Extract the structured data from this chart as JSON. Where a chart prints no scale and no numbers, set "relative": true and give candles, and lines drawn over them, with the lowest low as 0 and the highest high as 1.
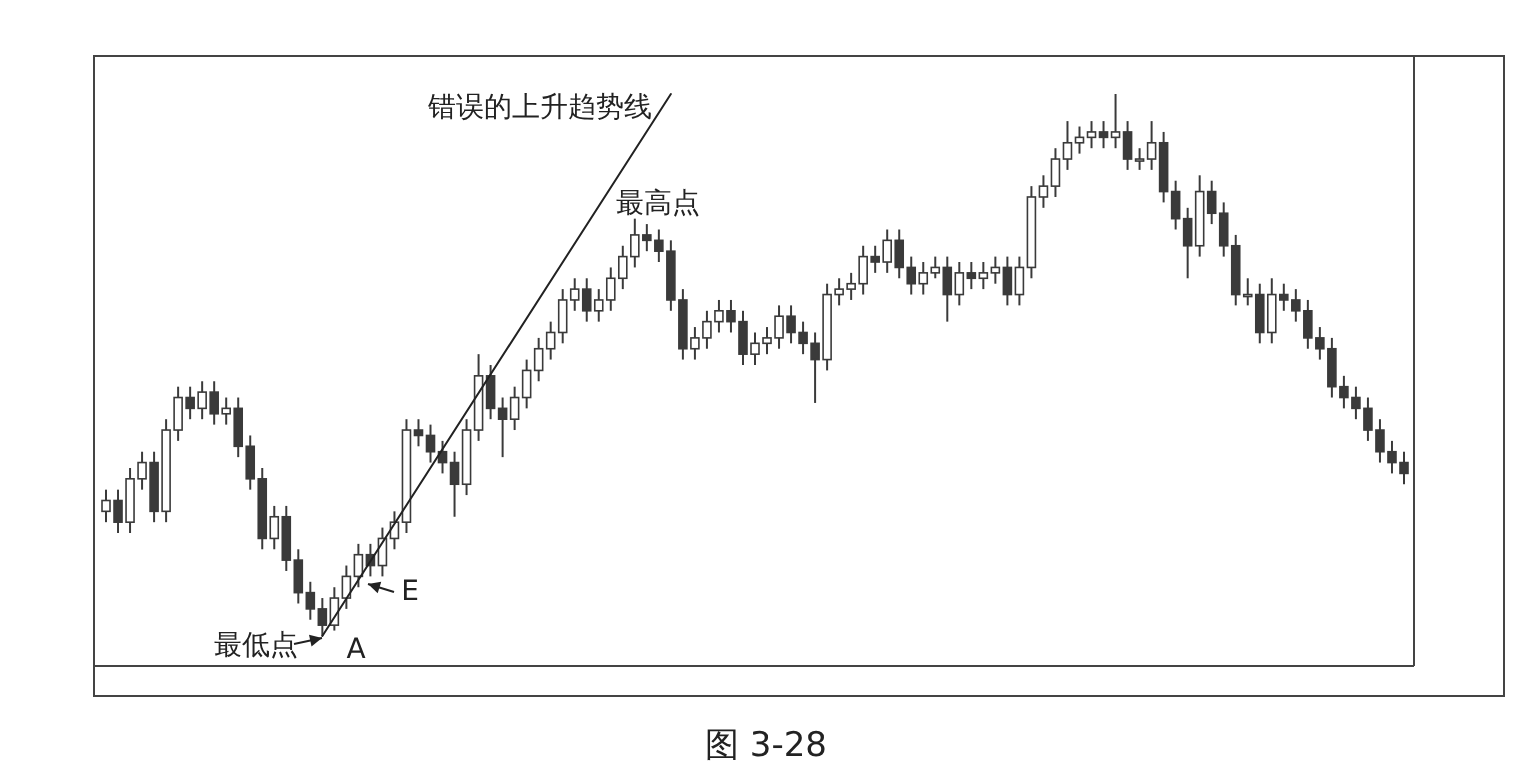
{
  "chart_data": {
    "type": "candlestick",
    "relative": true,
    "color": "#3a3a3a",
    "categories": [
      null,
      null,
      null,
      null,
      null,
      null,
      null,
      null,
      null,
      null,
      null,
      null,
      null,
      null,
      null,
      null,
      null,
      null,
      null,
      null,
      null,
      null,
      null,
      null,
      null,
      null,
      null,
      null,
      null,
      null,
      null,
      null,
      null,
      null,
      null,
      null,
      null,
      null,
      null,
      null,
      null,
      null,
      null,
      null,
      null,
      null,
      null,
      null,
      null,
      null,
      null,
      null,
      null,
      null,
      null,
      null,
      null,
      null,
      null,
      null,
      null,
      null,
      null,
      null,
      null,
      null,
      null,
      null,
      null,
      null,
      null,
      null,
      null,
      null,
      null,
      null,
      null,
      null,
      null,
      null,
      null,
      null,
      null,
      null,
      null,
      null,
      null,
      null,
      null,
      null,
      null,
      null,
      null,
      null,
      null,
      null,
      null,
      null,
      null,
      null,
      null,
      null,
      null,
      null,
      null,
      null,
      null,
      null,
      null
    ],
    "ohlc": [
      [
        0.23,
        0.27,
        0.21,
        0.25
      ],
      [
        0.25,
        0.27,
        0.19,
        0.21
      ],
      [
        0.21,
        0.31,
        0.19,
        0.29
      ],
      [
        0.29,
        0.34,
        0.27,
        0.32
      ],
      [
        0.32,
        0.34,
        0.21,
        0.23
      ],
      [
        0.23,
        0.4,
        0.21,
        0.38
      ],
      [
        0.38,
        0.46,
        0.36,
        0.44
      ],
      [
        0.44,
        0.46,
        0.4,
        0.42
      ],
      [
        0.42,
        0.47,
        0.4,
        0.45
      ],
      [
        0.45,
        0.47,
        0.39,
        0.41
      ],
      [
        0.41,
        0.44,
        0.39,
        0.42
      ],
      [
        0.42,
        0.44,
        0.33,
        0.35
      ],
      [
        0.35,
        0.37,
        0.27,
        0.29
      ],
      [
        0.29,
        0.31,
        0.16,
        0.18
      ],
      [
        0.18,
        0.24,
        0.16,
        0.22
      ],
      [
        0.22,
        0.24,
        0.12,
        0.14
      ],
      [
        0.14,
        0.16,
        0.06,
        0.08
      ],
      [
        0.08,
        0.1,
        0.03,
        0.05
      ],
      [
        0.05,
        0.07,
        0.0,
        0.02
      ],
      [
        0.02,
        0.09,
        0.01,
        0.07
      ],
      [
        0.07,
        0.13,
        0.05,
        0.11
      ],
      [
        0.11,
        0.17,
        0.09,
        0.15
      ],
      [
        0.15,
        0.17,
        0.11,
        0.13
      ],
      [
        0.13,
        0.2,
        0.11,
        0.18
      ],
      [
        0.18,
        0.23,
        0.16,
        0.21
      ],
      [
        0.21,
        0.4,
        0.19,
        0.38
      ],
      [
        0.38,
        0.4,
        0.35,
        0.37
      ],
      [
        0.37,
        0.39,
        0.32,
        0.34
      ],
      [
        0.34,
        0.36,
        0.3,
        0.32
      ],
      [
        0.32,
        0.34,
        0.22,
        0.28
      ],
      [
        0.28,
        0.4,
        0.26,
        0.38
      ],
      [
        0.38,
        0.52,
        0.36,
        0.48
      ],
      [
        0.48,
        0.5,
        0.4,
        0.42
      ],
      [
        0.42,
        0.44,
        0.33,
        0.4
      ],
      [
        0.4,
        0.46,
        0.38,
        0.44
      ],
      [
        0.44,
        0.51,
        0.42,
        0.49
      ],
      [
        0.49,
        0.55,
        0.47,
        0.53
      ],
      [
        0.53,
        0.58,
        0.51,
        0.56
      ],
      [
        0.56,
        0.64,
        0.54,
        0.62
      ],
      [
        0.62,
        0.66,
        0.6,
        0.64
      ],
      [
        0.64,
        0.66,
        0.58,
        0.6
      ],
      [
        0.6,
        0.64,
        0.58,
        0.62
      ],
      [
        0.62,
        0.68,
        0.6,
        0.66
      ],
      [
        0.66,
        0.72,
        0.64,
        0.7
      ],
      [
        0.7,
        0.77,
        0.68,
        0.74
      ],
      [
        0.74,
        0.76,
        0.71,
        0.73
      ],
      [
        0.73,
        0.75,
        0.69,
        0.71
      ],
      [
        0.71,
        0.73,
        0.6,
        0.62
      ],
      [
        0.62,
        0.64,
        0.51,
        0.53
      ],
      [
        0.53,
        0.57,
        0.51,
        0.55
      ],
      [
        0.55,
        0.6,
        0.53,
        0.58
      ],
      [
        0.58,
        0.62,
        0.56,
        0.6
      ],
      [
        0.6,
        0.62,
        0.56,
        0.58
      ],
      [
        0.58,
        0.6,
        0.5,
        0.52
      ],
      [
        0.52,
        0.56,
        0.5,
        0.54
      ],
      [
        0.54,
        0.57,
        0.52,
        0.55
      ],
      [
        0.55,
        0.61,
        0.53,
        0.59
      ],
      [
        0.59,
        0.61,
        0.54,
        0.56
      ],
      [
        0.56,
        0.58,
        0.52,
        0.54
      ],
      [
        0.54,
        0.56,
        0.43,
        0.51
      ],
      [
        0.51,
        0.65,
        0.49,
        0.63
      ],
      [
        0.63,
        0.66,
        0.61,
        0.64
      ],
      [
        0.64,
        0.67,
        0.62,
        0.65
      ],
      [
        0.65,
        0.72,
        0.63,
        0.7
      ],
      [
        0.7,
        0.72,
        0.67,
        0.69
      ],
      [
        0.69,
        0.75,
        0.67,
        0.73
      ],
      [
        0.73,
        0.75,
        0.66,
        0.68
      ],
      [
        0.68,
        0.7,
        0.63,
        0.65
      ],
      [
        0.65,
        0.69,
        0.63,
        0.67
      ],
      [
        0.67,
        0.7,
        0.66,
        0.68
      ],
      [
        0.68,
        0.7,
        0.58,
        0.63
      ],
      [
        0.63,
        0.69,
        0.61,
        0.67
      ],
      [
        0.67,
        0.69,
        0.64,
        0.66
      ],
      [
        0.66,
        0.69,
        0.64,
        0.67
      ],
      [
        0.67,
        0.7,
        0.65,
        0.68
      ],
      [
        0.68,
        0.7,
        0.61,
        0.63
      ],
      [
        0.63,
        0.7,
        0.61,
        0.68
      ],
      [
        0.68,
        0.83,
        0.66,
        0.81
      ],
      [
        0.81,
        0.85,
        0.79,
        0.83
      ],
      [
        0.83,
        0.9,
        0.81,
        0.88
      ],
      [
        0.88,
        0.95,
        0.86,
        0.91
      ],
      [
        0.91,
        0.94,
        0.89,
        0.92
      ],
      [
        0.92,
        0.95,
        0.9,
        0.93
      ],
      [
        0.93,
        0.95,
        0.9,
        0.92
      ],
      [
        0.92,
        1.0,
        0.9,
        0.93
      ],
      [
        0.93,
        0.95,
        0.86,
        0.88
      ],
      [
        0.88,
        0.9,
        0.86,
        0.88
      ],
      [
        0.88,
        0.95,
        0.86,
        0.91
      ],
      [
        0.91,
        0.93,
        0.8,
        0.82
      ],
      [
        0.82,
        0.84,
        0.75,
        0.77
      ],
      [
        0.77,
        0.79,
        0.66,
        0.72
      ],
      [
        0.72,
        0.85,
        0.7,
        0.82
      ],
      [
        0.82,
        0.84,
        0.76,
        0.78
      ],
      [
        0.78,
        0.8,
        0.7,
        0.72
      ],
      [
        0.72,
        0.74,
        0.61,
        0.63
      ],
      [
        0.63,
        0.66,
        0.61,
        0.63
      ],
      [
        0.63,
        0.65,
        0.54,
        0.56
      ],
      [
        0.56,
        0.66,
        0.54,
        0.63
      ],
      [
        0.63,
        0.65,
        0.6,
        0.62
      ],
      [
        0.62,
        0.64,
        0.58,
        0.6
      ],
      [
        0.6,
        0.62,
        0.53,
        0.55
      ],
      [
        0.55,
        0.57,
        0.51,
        0.53
      ],
      [
        0.53,
        0.55,
        0.44,
        0.46
      ],
      [
        0.46,
        0.48,
        0.42,
        0.44
      ],
      [
        0.44,
        0.46,
        0.4,
        0.42
      ],
      [
        0.42,
        0.44,
        0.36,
        0.38
      ],
      [
        0.38,
        0.4,
        0.32,
        0.34
      ],
      [
        0.34,
        0.36,
        0.3,
        0.32
      ],
      [
        0.32,
        0.34,
        0.28,
        0.3
      ]
    ],
    "series": [
      {
        "type": "line",
        "color": "#222222",
        "values": [
          null,
          null,
          null,
          null,
          null,
          null,
          null,
          null,
          null,
          null,
          null,
          null,
          null,
          null,
          null,
          null,
          null,
          null,
          0,
          null,
          null,
          null,
          null,
          null,
          null,
          null,
          null,
          null,
          null,
          null,
          null,
          null,
          null,
          null,
          null,
          null,
          null,
          null,
          null,
          null,
          null,
          null,
          null,
          null,
          null,
          null,
          null,
          1.0,
          null,
          null,
          null,
          null,
          null,
          null,
          null,
          null,
          null,
          null,
          null,
          null,
          null,
          null,
          null,
          null,
          null,
          null,
          null,
          null,
          null,
          null,
          null,
          null,
          null,
          null,
          null,
          null,
          null,
          null,
          null,
          null,
          null,
          null,
          null,
          null,
          null,
          null,
          null,
          null,
          null,
          null,
          null,
          null,
          null,
          null,
          null,
          null,
          null,
          null,
          null,
          null,
          null,
          null,
          null,
          null,
          null,
          null,
          null,
          null,
          null
        ]
      }
    ],
    "annotations": [
      "错误的上升趋势线",
      "最高点",
      "最低点",
      "A",
      "E",
      "图 3-28"
    ]
  }
}
